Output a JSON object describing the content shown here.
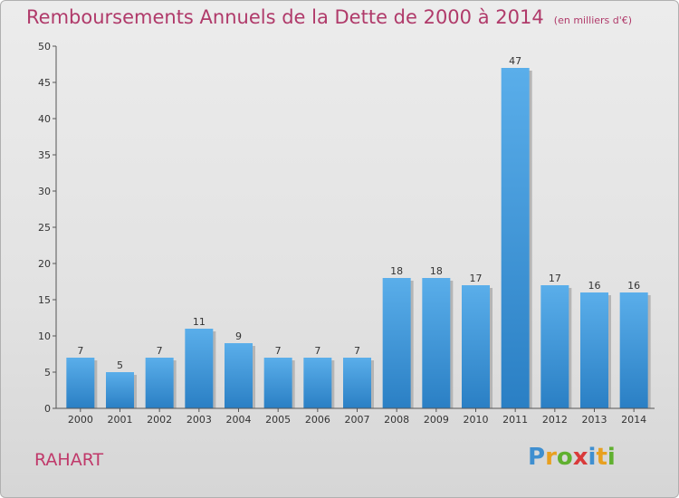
{
  "chart_data": {
    "type": "bar",
    "title": "Remboursements Annuels de la Dette de 2000 à 2014",
    "subtitle": "(en milliers d'€)",
    "categories": [
      "2000",
      "2001",
      "2002",
      "2003",
      "2004",
      "2005",
      "2006",
      "2007",
      "2008",
      "2009",
      "2010",
      "2011",
      "2012",
      "2013",
      "2014"
    ],
    "values": [
      7,
      5,
      7,
      11,
      9,
      7,
      7,
      7,
      18,
      18,
      17,
      47,
      17,
      16,
      16
    ],
    "ylim": [
      0,
      50
    ],
    "yticks": [
      0,
      5,
      10,
      15,
      20,
      25,
      30,
      35,
      40,
      45,
      50
    ],
    "grid": false,
    "bar_color": "#3d97dc"
  },
  "commune": "RAHART",
  "logo": {
    "letters": [
      "P",
      "r",
      "o",
      "x",
      "i",
      "t",
      "i"
    ],
    "colors": [
      "#3f8fd0",
      "#e8a020",
      "#60b030",
      "#d93a3a",
      "#3f8fd0",
      "#e8a020",
      "#60b030"
    ]
  }
}
